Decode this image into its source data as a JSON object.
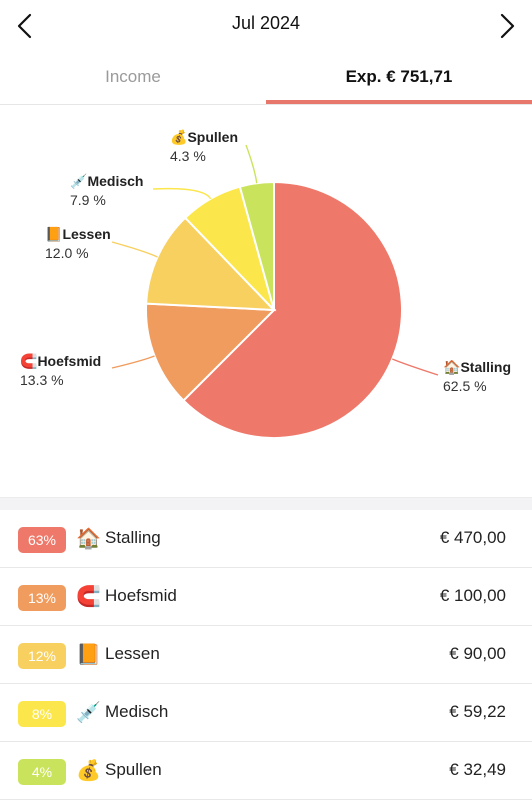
{
  "header": {
    "month": "Jul 2024",
    "prev_icon": "chevron-left-icon",
    "next_icon": "chevron-right-icon"
  },
  "tabs": {
    "income_label": "Income",
    "expense_label": "Exp. € 751,71"
  },
  "colors": {
    "accent": "#e7766b",
    "stalling": "#ee7869",
    "hoefsmid": "#f09c5e",
    "lessen": "#f7d060",
    "medisch": "#fbe64b",
    "spullen": "#c9e45c"
  },
  "chart_data": {
    "type": "pie",
    "slices": [
      {
        "name": "Stalling",
        "icon": "🏠",
        "value": 62.5,
        "percent_label": "62.5 %",
        "color": "#ee7869"
      },
      {
        "name": "Hoefsmid",
        "icon": "🧲",
        "value": 13.3,
        "percent_label": "13.3 %",
        "color": "#f09c5e"
      },
      {
        "name": "Lessen",
        "icon": "📙",
        "value": 12.0,
        "percent_label": "12.0 %",
        "color": "#f7d060"
      },
      {
        "name": "Medisch",
        "icon": "💉",
        "value": 7.9,
        "percent_label": "7.9 %",
        "color": "#fbe64b"
      },
      {
        "name": "Spullen",
        "icon": "💰",
        "value": 4.3,
        "percent_label": "4.3 %",
        "color": "#c9e45c"
      }
    ]
  },
  "list": [
    {
      "badge": "63%",
      "icon": "🏠",
      "name": "Stalling",
      "amount": "€ 470,00",
      "color": "#ee7869"
    },
    {
      "badge": "13%",
      "icon": "🧲",
      "name": "Hoefsmid",
      "amount": "€ 100,00",
      "color": "#f09c5e"
    },
    {
      "badge": "12%",
      "icon": "📙",
      "name": "Lessen",
      "amount": "€ 90,00",
      "color": "#f7d060"
    },
    {
      "badge": "8%",
      "icon": "💉",
      "name": "Medisch",
      "amount": "€ 59,22",
      "color": "#fbe64b"
    },
    {
      "badge": "4%",
      "icon": "💰",
      "name": "Spullen",
      "amount": "€ 32,49",
      "color": "#c9e45c"
    }
  ]
}
